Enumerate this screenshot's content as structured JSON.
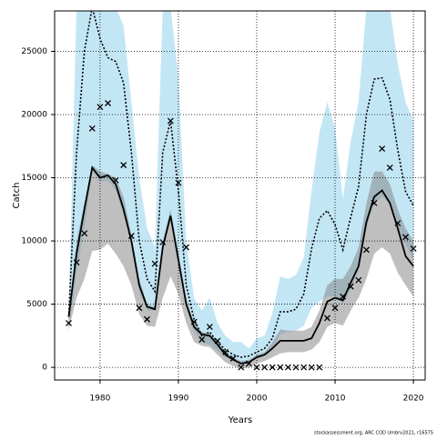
{
  "chart_data": {
    "type": "band-line",
    "xlabel": "Years",
    "ylabel": "Catch",
    "footnote": "stockassessment.org, ARC COD  Umbrv2021, r16575",
    "x": [
      1976,
      1977,
      1978,
      1979,
      1980,
      1981,
      1982,
      1983,
      1984,
      1985,
      1986,
      1987,
      1988,
      1989,
      1990,
      1991,
      1992,
      1993,
      1994,
      1995,
      1996,
      1997,
      1998,
      1999,
      2000,
      2001,
      2002,
      2003,
      2004,
      2005,
      2006,
      2007,
      2008,
      2009,
      2010,
      2011,
      2012,
      2013,
      2014,
      2015,
      2016,
      2017,
      2018,
      2019,
      2020
    ],
    "xlim": [
      1974.2,
      2021.5
    ],
    "xticks": [
      1980,
      1990,
      2000,
      2010,
      2020
    ],
    "ylim": [
      -1000,
      28200
    ],
    "yticks": [
      0,
      5000,
      10000,
      15000,
      20000,
      25000
    ],
    "grid": true,
    "bands": [
      {
        "color": "#87ceeb",
        "lower": [
          2800,
          7500,
          11000,
          15500,
          14700,
          14800,
          14000,
          12000,
          10500,
          6000,
          4500,
          4500,
          9500,
          11800,
          9000,
          5000,
          2800,
          2000,
          1800,
          1300,
          800,
          500,
          300,
          400,
          700,
          900,
          1300,
          2600,
          2800,
          2900,
          3300,
          4700,
          5200,
          5600,
          5600,
          5000,
          6200,
          7600,
          11000,
          13000,
          13500,
          13000,
          11000,
          9700,
          8500
        ],
        "upper": [
          4500,
          28500,
          28500,
          28500,
          28500,
          28500,
          28500,
          27000,
          21000,
          15000,
          11000,
          9500,
          28500,
          28500,
          23000,
          10000,
          5500,
          4500,
          5500,
          3500,
          2500,
          2000,
          2000,
          1500,
          2300,
          2500,
          4300,
          7200,
          7000,
          7300,
          8700,
          14000,
          18600,
          21000,
          18900,
          13300,
          17900,
          21000,
          28500,
          28500,
          28500,
          28500,
          24000,
          21000,
          19500
        ]
      },
      {
        "color": "#808080",
        "lower": [
          3000,
          5500,
          7000,
          9200,
          9300,
          9800,
          9000,
          8000,
          6500,
          4200,
          3300,
          3200,
          5500,
          7200,
          5800,
          3500,
          2000,
          1700,
          1600,
          1000,
          400,
          100,
          -100,
          0,
          300,
          500,
          800,
          1100,
          1200,
          1200,
          1200,
          1400,
          2000,
          3200,
          3500,
          3300,
          4500,
          5500,
          7000,
          9000,
          9500,
          9000,
          7500,
          6500,
          5600
        ],
        "upper": [
          4200,
          10000,
          13000,
          16000,
          15500,
          15300,
          15000,
          13500,
          10500,
          7000,
          5000,
          4800,
          10000,
          12500,
          9000,
          5500,
          3500,
          2800,
          2700,
          2000,
          1200,
          800,
          500,
          600,
          1000,
          1200,
          2000,
          3000,
          2900,
          2900,
          2900,
          3200,
          4500,
          6500,
          7000,
          7000,
          8000,
          9500,
          13000,
          15500,
          15500,
          14500,
          12500,
          11000,
          10000
        ]
      }
    ],
    "lines": [
      {
        "color": "#000000",
        "dash": "dotted",
        "values": [
          4000,
          17000,
          25000,
          28500,
          26000,
          24500,
          24200,
          22500,
          17000,
          10000,
          7000,
          6000,
          17000,
          19500,
          14000,
          6500,
          3800,
          2500,
          2800,
          2000,
          1400,
          1000,
          800,
          900,
          1200,
          1500,
          2300,
          4400,
          4400,
          4600,
          5800,
          9400,
          11800,
          12400,
          11300,
          9300,
          11900,
          14300,
          20000,
          22800,
          22900,
          21200,
          17200,
          13900,
          12800
        ]
      },
      {
        "color": "#000000",
        "dash": "solid",
        "values": [
          4000,
          9000,
          12500,
          15800,
          15000,
          15200,
          14500,
          12500,
          10000,
          6500,
          4800,
          4600,
          9500,
          12000,
          8500,
          5000,
          3200,
          2600,
          2500,
          1800,
          1000,
          600,
          300,
          400,
          800,
          1000,
          1500,
          2100,
          2100,
          2100,
          2100,
          2300,
          3500,
          5200,
          5500,
          5300,
          6700,
          8000,
          11500,
          13500,
          14000,
          13000,
          11000,
          8800,
          8000
        ]
      }
    ],
    "points": {
      "color": "#000000",
      "marker": "x",
      "values": [
        3500,
        8300,
        10600,
        18900,
        20600,
        20900,
        14800,
        16000,
        10400,
        4700,
        3800,
        8200,
        9900,
        19500,
        14600,
        9500,
        3600,
        2200,
        3200,
        2100,
        1200,
        700,
        0,
        300,
        0,
        0,
        0,
        0,
        0,
        0,
        0,
        0,
        0,
        3900,
        4700,
        5600,
        6400,
        6900,
        9300,
        13000,
        17300,
        15800,
        11400,
        10300,
        9400
      ]
    }
  }
}
